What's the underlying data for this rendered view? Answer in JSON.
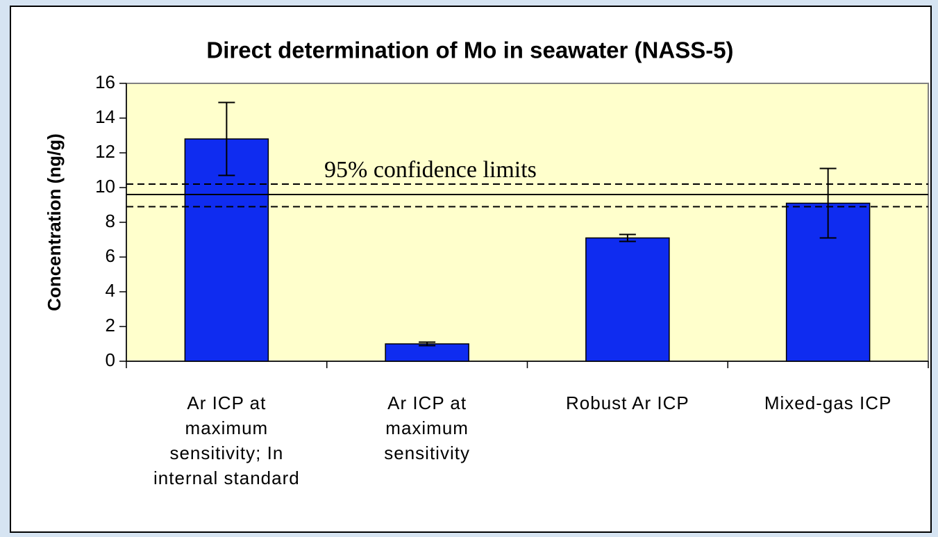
{
  "chart_data": {
    "type": "bar",
    "title": "Direct determination of Mo in seawater (NASS-5)",
    "y_label": "Concentration (ng/g)",
    "categories": [
      "Ar ICP at\nmaximum\nsensitivity; In\ninternal standard",
      "Ar ICP at\nmaximum\nsensitivity",
      "Robust Ar ICP",
      "Mixed-gas ICP"
    ],
    "values": [
      12.8,
      1.0,
      7.1,
      9.1
    ],
    "errors": [
      2.1,
      0.1,
      0.2,
      2.0
    ],
    "color": "#0f2cf0",
    "ylim": [
      0,
      16
    ],
    "yticks": [
      0,
      2,
      4,
      6,
      8,
      10,
      12,
      14,
      16
    ],
    "certified_value": 9.6,
    "confidence_limits": [
      8.9,
      10.2
    ],
    "annotation": "95% confidence limits",
    "plot_background": "#ffffcc"
  }
}
